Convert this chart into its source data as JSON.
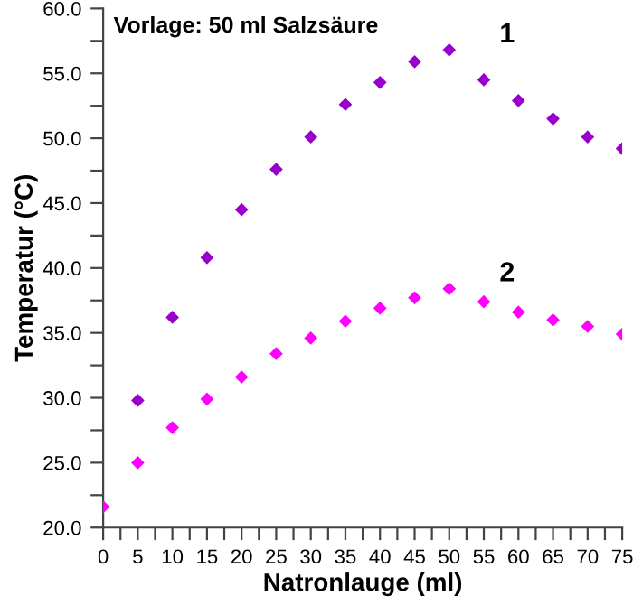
{
  "chart_data": {
    "type": "scatter",
    "xlabel": "Natronlauge (ml)",
    "ylabel": "Temperatur (°C)",
    "annotations": [
      "Vorlage: 50 ml Salzsäure"
    ],
    "x": [
      0,
      5,
      10,
      15,
      20,
      25,
      30,
      35,
      40,
      45,
      50,
      55,
      60,
      65,
      70,
      75
    ],
    "series": [
      {
        "name": "1",
        "color": "#9900cc",
        "values": [
          null,
          29.8,
          36.2,
          40.8,
          44.5,
          47.6,
          50.1,
          52.6,
          54.3,
          55.9,
          56.8,
          54.5,
          52.9,
          51.5,
          50.1,
          49.2
        ]
      },
      {
        "name": "2",
        "color": "#ff00ff",
        "values": [
          21.6,
          25.0,
          27.7,
          29.9,
          31.6,
          33.4,
          34.6,
          35.9,
          36.9,
          37.7,
          38.4,
          37.4,
          36.6,
          36.0,
          35.5,
          34.9
        ]
      }
    ],
    "marker": "diamond",
    "grid": false,
    "legend": false,
    "xlim": [
      0,
      75
    ],
    "ylim": [
      20,
      60
    ],
    "xticks": [
      0,
      {
        "value": 2.5,
        "label": null
      },
      5,
      {
        "value": 7.5,
        "label": null
      },
      10,
      {
        "value": 12.5,
        "label": null
      },
      15,
      {
        "value": 17.5,
        "label": null
      },
      20,
      {
        "value": 22.5,
        "label": null
      },
      25,
      {
        "value": 27.5,
        "label": null
      },
      30,
      {
        "value": 32.5,
        "label": null
      },
      35,
      {
        "value": 37.5,
        "label": null
      },
      40,
      {
        "value": 42.5,
        "label": null
      },
      45,
      {
        "value": 47.5,
        "label": null
      },
      50,
      {
        "value": 52.5,
        "label": null
      },
      55,
      {
        "value": 57.5,
        "label": null
      },
      60,
      {
        "value": 62.5,
        "label": null
      },
      65,
      {
        "value": 67.5,
        "label": null
      },
      70,
      {
        "value": 72.5,
        "label": null
      },
      75
    ],
    "yticks": [
      {
        "value": 20,
        "label": "20.0"
      },
      {
        "value": 22.5,
        "label": null
      },
      {
        "value": 25,
        "label": "25.0"
      },
      {
        "value": 27.5,
        "label": null
      },
      {
        "value": 30,
        "label": "30.0"
      },
      {
        "value": 32.5,
        "label": null
      },
      {
        "value": 35,
        "label": "35.0"
      },
      {
        "value": 37.5,
        "label": null
      },
      {
        "value": 40,
        "label": "40.0"
      },
      {
        "value": 42.5,
        "label": null
      },
      {
        "value": 45,
        "label": "45.0"
      },
      {
        "value": 47.5,
        "label": null
      },
      {
        "value": 50,
        "label": "50.0"
      },
      {
        "value": 52.5,
        "label": null
      },
      {
        "value": 55,
        "label": "55.0"
      },
      {
        "value": 57.5,
        "label": null
      },
      {
        "value": 60,
        "label": "60.0"
      }
    ]
  }
}
